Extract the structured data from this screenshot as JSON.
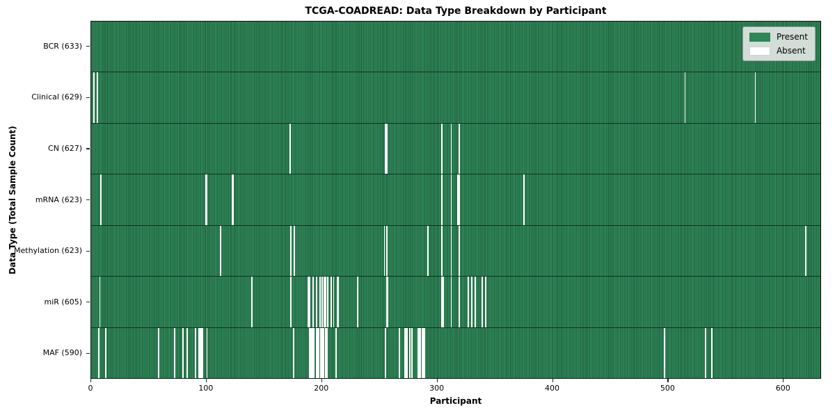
{
  "title": "TCGA-COADREAD: Data Type Breakdown by Participant",
  "xlabel": "Participant",
  "ylabel": "Data Type (Total Sample Count)",
  "legend": [
    {
      "label": "Present",
      "color": "#2e8657"
    },
    {
      "label": "Absent",
      "color": "#ffffff"
    }
  ],
  "chart_data": {
    "type": "heatmap",
    "title": "TCGA-COADREAD: Data Type Breakdown by Participant",
    "xlabel": "Participant",
    "ylabel": "Data Type (Total Sample Count)",
    "legend_entries": [
      "Present",
      "Absent"
    ],
    "legend_position": "upper right",
    "colors": {
      "present": "#2e8657",
      "absent": "#ffffff",
      "cell_edge": "#1d5c3b"
    },
    "n_participants": 633,
    "x_ticks": [
      0,
      100,
      200,
      300,
      400,
      500,
      600
    ],
    "xlim": [
      0,
      633
    ],
    "rows": [
      {
        "label": "BCR (633)",
        "data_type": "BCR",
        "total_samples": 633,
        "absent_participants": []
      },
      {
        "label": "Clinical (629)",
        "data_type": "Clinical",
        "total_samples": 629,
        "absent_participants": [
          2,
          5,
          515,
          576
        ]
      },
      {
        "label": "CN (627)",
        "data_type": "CN",
        "total_samples": 627,
        "absent_participants": [
          172,
          255,
          256,
          304,
          312,
          319
        ]
      },
      {
        "label": "mRNA (623)",
        "data_type": "mRNA",
        "total_samples": 623,
        "absent_participants": [
          8,
          99,
          100,
          122,
          123,
          304,
          312,
          318,
          319,
          375
        ]
      },
      {
        "label": "Methylation (623)",
        "data_type": "Methylation",
        "total_samples": 623,
        "absent_participants": [
          112,
          173,
          176,
          254,
          256,
          292,
          304,
          312,
          319,
          620
        ]
      },
      {
        "label": "miR (605)",
        "data_type": "miR",
        "total_samples": 605,
        "absent_participants": [
          7,
          139,
          173,
          188,
          189,
          192,
          195,
          198,
          200,
          202,
          203,
          205,
          208,
          210,
          213,
          214,
          231,
          256,
          257,
          304,
          305,
          312,
          319,
          327,
          330,
          333,
          339,
          342
        ]
      },
      {
        "label": "MAF (590)",
        "data_type": "MAF",
        "total_samples": 590,
        "absent_participants": [
          6,
          12,
          58,
          72,
          79,
          83,
          90,
          93,
          94,
          95,
          96,
          100,
          175,
          189,
          190,
          191,
          192,
          193,
          195,
          196,
          197,
          199,
          200,
          201,
          203,
          204,
          212,
          255,
          267,
          272,
          273,
          274,
          276,
          278,
          283,
          284,
          285,
          287,
          288,
          289,
          497,
          533,
          538
        ]
      }
    ]
  }
}
